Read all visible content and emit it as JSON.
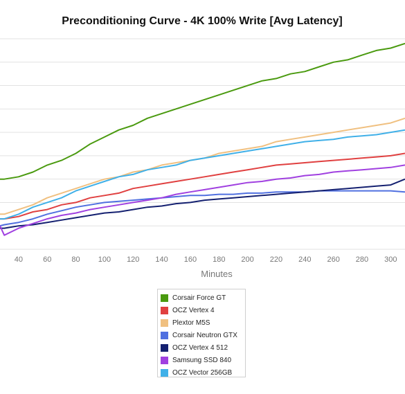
{
  "chart_data": {
    "type": "line",
    "title": "Preconditioning Curve - 4K 100% Write [Avg Latency]",
    "xlabel": "Minutes",
    "ylabel": "",
    "xlim": [
      27,
      310
    ],
    "ylim": [
      0,
      9
    ],
    "grid": true,
    "legend_position": "bottom-center",
    "x_ticks": [
      40,
      60,
      80,
      100,
      120,
      140,
      160,
      180,
      200,
      220,
      240,
      260,
      280,
      300
    ],
    "x": [
      27,
      30,
      40,
      50,
      60,
      70,
      80,
      90,
      100,
      110,
      120,
      130,
      140,
      150,
      160,
      170,
      180,
      190,
      200,
      210,
      220,
      230,
      240,
      250,
      260,
      270,
      280,
      290,
      300,
      310
    ],
    "series": [
      {
        "name": "Corsair Force GT",
        "color": "#4a9a0f",
        "values": [
          3.0,
          3.0,
          3.1,
          3.3,
          3.6,
          3.8,
          4.1,
          4.5,
          4.8,
          5.1,
          5.3,
          5.6,
          5.8,
          6.0,
          6.2,
          6.4,
          6.6,
          6.8,
          7.0,
          7.2,
          7.3,
          7.5,
          7.6,
          7.8,
          8.0,
          8.1,
          8.3,
          8.5,
          8.6,
          8.8
        ]
      },
      {
        "name": "OCZ Vertex 4",
        "color": "#e04040",
        "values": [
          1.3,
          1.3,
          1.4,
          1.6,
          1.7,
          1.9,
          2.0,
          2.2,
          2.3,
          2.4,
          2.6,
          2.7,
          2.8,
          2.9,
          3.0,
          3.1,
          3.2,
          3.3,
          3.4,
          3.5,
          3.6,
          3.65,
          3.7,
          3.75,
          3.8,
          3.85,
          3.9,
          3.95,
          4.0,
          4.1
        ]
      },
      {
        "name": "Plextor M5S",
        "color": "#f0c080",
        "values": [
          1.5,
          1.5,
          1.7,
          1.9,
          2.2,
          2.4,
          2.6,
          2.8,
          3.0,
          3.1,
          3.3,
          3.4,
          3.6,
          3.7,
          3.8,
          3.9,
          4.1,
          4.2,
          4.3,
          4.4,
          4.6,
          4.7,
          4.8,
          4.9,
          5.0,
          5.1,
          5.2,
          5.3,
          5.4,
          5.6
        ]
      },
      {
        "name": "Corsair Neutron GTX",
        "color": "#5070e0",
        "values": [
          1.0,
          1.05,
          1.15,
          1.3,
          1.5,
          1.65,
          1.8,
          1.9,
          2.0,
          2.05,
          2.1,
          2.15,
          2.2,
          2.25,
          2.3,
          2.3,
          2.35,
          2.35,
          2.4,
          2.4,
          2.45,
          2.45,
          2.45,
          2.5,
          2.5,
          2.5,
          2.5,
          2.5,
          2.5,
          2.45
        ]
      },
      {
        "name": "OCZ Vertex 4 512",
        "color": "#142070",
        "values": [
          0.9,
          0.9,
          1.0,
          1.05,
          1.15,
          1.25,
          1.35,
          1.45,
          1.55,
          1.6,
          1.7,
          1.8,
          1.85,
          1.95,
          2.0,
          2.1,
          2.15,
          2.2,
          2.25,
          2.3,
          2.35,
          2.4,
          2.45,
          2.5,
          2.55,
          2.6,
          2.65,
          2.7,
          2.75,
          3.0
        ]
      },
      {
        "name": "Samsung SSD 840",
        "color": "#a040e0",
        "values": [
          1.0,
          0.6,
          0.9,
          1.1,
          1.3,
          1.45,
          1.55,
          1.7,
          1.8,
          1.9,
          2.0,
          2.1,
          2.2,
          2.35,
          2.45,
          2.55,
          2.65,
          2.75,
          2.85,
          2.9,
          3.0,
          3.05,
          3.15,
          3.2,
          3.3,
          3.35,
          3.4,
          3.45,
          3.5,
          3.6
        ]
      },
      {
        "name": "OCZ Vector 256GB",
        "color": "#40b0e8",
        "values": [
          1.3,
          1.3,
          1.5,
          1.8,
          2.0,
          2.2,
          2.5,
          2.7,
          2.9,
          3.1,
          3.2,
          3.4,
          3.5,
          3.6,
          3.8,
          3.9,
          4.0,
          4.1,
          4.2,
          4.3,
          4.4,
          4.5,
          4.6,
          4.65,
          4.7,
          4.8,
          4.85,
          4.9,
          5.0,
          5.1
        ]
      }
    ]
  }
}
